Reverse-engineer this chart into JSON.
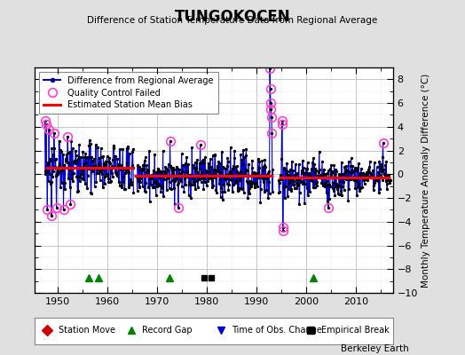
{
  "title": "TUNGOKOCEN",
  "subtitle": "Difference of Station Temperature Data from Regional Average",
  "ylabel": "Monthly Temperature Anomaly Difference (°C)",
  "xlim": [
    1945.5,
    2017.5
  ],
  "ylim": [
    -10,
    9
  ],
  "yticks": [
    -10,
    -8,
    -6,
    -4,
    -2,
    0,
    2,
    4,
    6,
    8
  ],
  "xticks": [
    1950,
    1960,
    1970,
    1980,
    1990,
    2000,
    2010
  ],
  "bg_color": "#e0e0e0",
  "plot_bg_color": "#ffffff",
  "watermark": "Berkeley Earth",
  "record_gaps": [
    1956.3,
    1958.3,
    1972.5,
    2001.5
  ],
  "empirical_breaks": [
    1979.5,
    1981.0
  ],
  "legend1_diff": "Difference from Regional Average",
  "legend1_qc": "Quality Control Failed",
  "legend1_bias": "Estimated Station Mean Bias",
  "legend2_station_move": "Station Move",
  "legend2_record_gap": "Record Gap",
  "legend2_obs_change": "Time of Obs. Change",
  "legend2_empirical_break": "Empirical Break",
  "seg1_start": 1947.5,
  "seg1_end": 1965.4,
  "seg1_bias": 0.55,
  "seg2_start": 1965.5,
  "seg2_end": 1993.4,
  "seg2_bias": -0.15,
  "seg3_start": 1994.5,
  "seg3_end": 2017.0,
  "seg3_bias": -0.28
}
